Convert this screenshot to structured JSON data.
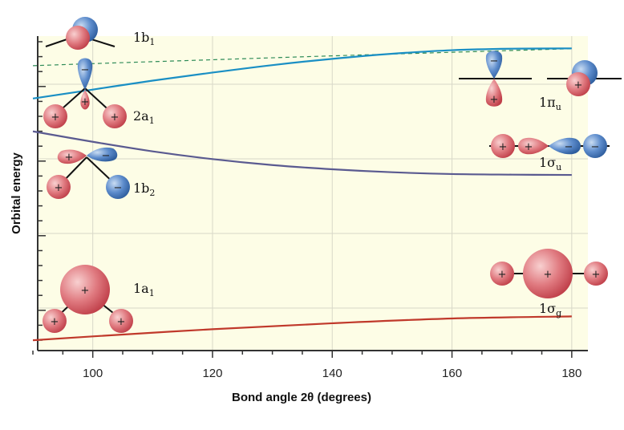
{
  "chart_data": {
    "type": "line",
    "title": "",
    "xlabel": "Bond angle 2θ  (degrees)",
    "ylabel": "Orbital energy",
    "xlim": [
      90,
      182
    ],
    "ylim": [
      0,
      10
    ],
    "x_ticks": [
      100,
      120,
      140,
      160,
      180
    ],
    "grid": true,
    "series": [
      {
        "name": "1b1",
        "label_main": "1b",
        "label_sub": "1",
        "style": "dashed",
        "color": "#2e8b57",
        "x": [
          90,
          100,
          120,
          140,
          160,
          180
        ],
        "y": [
          9.25,
          9.32,
          9.45,
          9.58,
          9.7,
          9.82
        ]
      },
      {
        "name": "2a1",
        "label_main": "2a",
        "label_sub": "1",
        "style": "solid",
        "color": "#1a8fc4",
        "x": [
          90,
          100,
          110,
          120,
          130,
          140,
          150,
          160,
          170,
          180
        ],
        "y": [
          8.15,
          8.45,
          8.75,
          9.02,
          9.27,
          9.48,
          9.65,
          9.77,
          9.82,
          9.83
        ]
      },
      {
        "name": "1b2",
        "label_main": "1b",
        "label_sub": "2",
        "style": "solid",
        "color": "#5a5a90",
        "x": [
          90,
          100,
          110,
          120,
          130,
          140,
          150,
          160,
          170,
          180
        ],
        "y": [
          7.05,
          6.7,
          6.38,
          6.12,
          5.92,
          5.78,
          5.68,
          5.62,
          5.6,
          5.59
        ]
      },
      {
        "name": "1a1",
        "label_main": "1a",
        "label_sub": "1",
        "style": "solid",
        "color": "#c0392b",
        "x": [
          90,
          100,
          120,
          140,
          160,
          180
        ],
        "y": [
          0.05,
          0.18,
          0.42,
          0.62,
          0.78,
          0.85
        ]
      }
    ],
    "linear_labels": [
      {
        "label_main": "1π",
        "label_sub": "u"
      },
      {
        "label_main": "1σ",
        "label_sub": "u"
      },
      {
        "label_main": "1σ",
        "label_sub": "g"
      }
    ],
    "colors": {
      "plot_bg": "#fdfde6",
      "grid": "#d8d8c8",
      "axis": "#333333",
      "lobe_pos": "#d9535a",
      "lobe_neg": "#3f72b5"
    },
    "signs": {
      "plus": "+",
      "minus": "−"
    }
  }
}
